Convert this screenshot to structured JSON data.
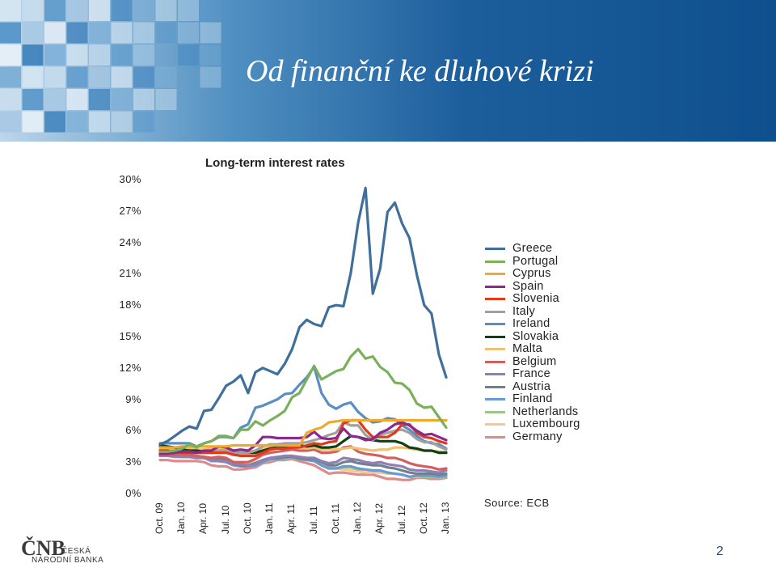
{
  "slide": {
    "title": "Od finanční ke dluhové krizi",
    "page_number": "2"
  },
  "logo": {
    "mark": "ČNB",
    "line1": "ČESKÁ",
    "line2": "NÁRODNÍ BANKA"
  },
  "source": "Source: ECB",
  "colors": {
    "banner_dark": "#0f4f8e",
    "banner_light": "#bcd6ea",
    "accent": "#1b4a8a"
  },
  "chart_data": {
    "type": "line",
    "title": "Long-term interest rates",
    "xlabel": "",
    "ylabel": "",
    "ylim": [
      0,
      30
    ],
    "ytick_labels": [
      "30%",
      "27%",
      "24%",
      "21%",
      "18%",
      "15%",
      "12%",
      "9%",
      "6%",
      "3%",
      "0%"
    ],
    "x_tick_labels": [
      "Oct. 09",
      "Jan. 10",
      "Apr. 10",
      "Jul. 10",
      "Oct. 10",
      "Jan. 11",
      "Apr. 11",
      "Jul. 11",
      "Oct. 11",
      "Jan. 12",
      "Apr. 12",
      "Jul. 12",
      "Oct. 12",
      "Jan. 13"
    ],
    "x": [
      "Oct. 09",
      "Nov. 09",
      "Dec. 09",
      "Jan. 10",
      "Feb. 10",
      "Mar. 10",
      "Apr. 10",
      "May. 10",
      "Jun. 10",
      "Jul. 10",
      "Aug. 10",
      "Sep. 10",
      "Oct. 10",
      "Nov. 10",
      "Dec. 10",
      "Jan. 11",
      "Feb. 11",
      "Mar. 11",
      "Apr. 11",
      "May. 11",
      "Jun. 11",
      "Jul. 11",
      "Aug. 11",
      "Sep. 11",
      "Oct. 11",
      "Nov. 11",
      "Dec. 11",
      "Jan. 12",
      "Feb. 12",
      "Mar. 12",
      "Apr. 12",
      "May. 12",
      "Jun. 12",
      "Jul. 12",
      "Aug. 12",
      "Sep. 12",
      "Oct. 12",
      "Nov. 12",
      "Dec. 12",
      "Jan. 13"
    ],
    "legend_position": "right",
    "series": [
      {
        "name": "Greece",
        "color": "#3f6f9a",
        "values": [
          4.7,
          5.0,
          5.5,
          6.0,
          6.4,
          6.2,
          7.9,
          8.0,
          9.1,
          10.3,
          10.7,
          11.3,
          9.6,
          11.6,
          12.0,
          11.7,
          11.4,
          12.4,
          13.8,
          15.9,
          16.6,
          16.2,
          16.0,
          17.8,
          18.0,
          17.9,
          21.1,
          25.9,
          29.2,
          19.1,
          21.5,
          26.9,
          27.8,
          25.8,
          24.4,
          20.9,
          18.0,
          17.2,
          13.3,
          11.1
        ]
      },
      {
        "name": "Portugal",
        "color": "#7ab05a",
        "values": [
          4.0,
          4.0,
          4.1,
          4.3,
          4.7,
          4.4,
          4.8,
          5.0,
          5.5,
          5.5,
          5.3,
          6.1,
          6.1,
          6.9,
          6.5,
          7.0,
          7.4,
          7.9,
          9.2,
          9.6,
          10.9,
          12.2,
          10.9,
          11.3,
          11.7,
          11.9,
          13.1,
          13.8,
          12.9,
          13.1,
          12.1,
          11.6,
          10.6,
          10.5,
          9.9,
          8.6,
          8.2,
          8.3,
          7.3,
          6.3
        ]
      },
      {
        "name": "Cyprus",
        "color": "#f0a830",
        "values": [
          4.4,
          4.4,
          4.4,
          4.5,
          4.5,
          4.5,
          4.5,
          4.5,
          4.5,
          4.5,
          4.6,
          4.6,
          4.6,
          4.6,
          4.6,
          4.6,
          4.6,
          4.6,
          4.6,
          4.6,
          5.8,
          6.1,
          6.3,
          6.8,
          6.9,
          7.0,
          7.0,
          7.0,
          7.0,
          7.0,
          7.0,
          7.0,
          7.0,
          7.0,
          7.0,
          7.0,
          7.0,
          7.0,
          7.0,
          7.0
        ]
      },
      {
        "name": "Spain",
        "color": "#8a2a8a",
        "values": [
          3.8,
          3.8,
          3.9,
          4.0,
          4.0,
          3.9,
          4.1,
          4.1,
          4.5,
          4.4,
          4.1,
          4.2,
          4.1,
          4.6,
          5.4,
          5.4,
          5.3,
          5.3,
          5.3,
          5.3,
          5.4,
          5.9,
          5.3,
          5.2,
          5.3,
          6.2,
          5.5,
          5.4,
          5.1,
          5.2,
          5.8,
          6.1,
          6.6,
          6.8,
          6.5,
          6.0,
          5.6,
          5.7,
          5.4,
          5.1
        ]
      },
      {
        "name": "Slovenia",
        "color": "#e03a1a",
        "values": [
          4.1,
          4.1,
          4.0,
          3.9,
          3.9,
          3.9,
          3.9,
          3.9,
          3.9,
          3.9,
          3.7,
          3.6,
          3.6,
          3.6,
          3.9,
          4.2,
          4.3,
          4.3,
          4.4,
          4.4,
          4.6,
          4.8,
          4.7,
          4.9,
          5.0,
          6.7,
          7.0,
          7.0,
          6.1,
          5.4,
          5.4,
          5.4,
          5.8,
          6.6,
          6.6,
          5.8,
          5.4,
          5.3,
          5.0,
          4.8
        ]
      },
      {
        "name": "Italy",
        "color": "#a0a0a0",
        "values": [
          4.1,
          4.1,
          4.0,
          4.0,
          4.0,
          3.9,
          4.0,
          4.0,
          4.1,
          4.1,
          3.9,
          3.9,
          3.9,
          4.1,
          4.5,
          4.7,
          4.7,
          4.8,
          4.8,
          4.8,
          4.9,
          5.1,
          5.3,
          5.6,
          5.8,
          6.8,
          6.5,
          6.5,
          5.6,
          5.1,
          5.6,
          5.8,
          6.0,
          6.1,
          5.8,
          5.2,
          4.9,
          4.9,
          4.5,
          4.2
        ]
      },
      {
        "name": "Ireland",
        "color": "#5a8ec0",
        "values": [
          4.8,
          4.8,
          4.8,
          4.8,
          4.8,
          4.5,
          4.8,
          5.0,
          5.4,
          5.4,
          5.3,
          6.3,
          6.6,
          8.2,
          8.4,
          8.7,
          9.0,
          9.5,
          9.6,
          10.4,
          11.1,
          12.1,
          9.6,
          8.5,
          8.1,
          8.5,
          8.7,
          7.8,
          7.2,
          6.8,
          6.9,
          7.2,
          7.1,
          6.5,
          6.1,
          5.5,
          5.0,
          4.8,
          4.7,
          4.3
        ]
      },
      {
        "name": "Slovakia",
        "color": "#143f14",
        "values": [
          4.6,
          4.5,
          4.4,
          4.2,
          4.1,
          4.1,
          4.0,
          4.0,
          4.0,
          4.0,
          3.9,
          3.9,
          3.9,
          3.9,
          4.1,
          4.3,
          4.4,
          4.4,
          4.6,
          4.6,
          4.5,
          4.6,
          4.4,
          4.4,
          4.5,
          5.0,
          5.5,
          5.4,
          5.2,
          5.1,
          5.0,
          5.0,
          5.0,
          4.8,
          4.4,
          4.3,
          4.1,
          4.1,
          3.9,
          3.9
        ]
      },
      {
        "name": "Malta",
        "color": "#f0c070",
        "values": [
          4.3,
          4.3,
          4.3,
          4.3,
          4.3,
          4.2,
          4.2,
          4.3,
          4.3,
          4.3,
          4.1,
          4.0,
          4.0,
          4.1,
          4.2,
          4.4,
          4.4,
          4.4,
          4.5,
          4.4,
          4.3,
          4.4,
          4.2,
          4.2,
          4.2,
          4.3,
          4.4,
          4.3,
          4.2,
          4.1,
          4.2,
          4.2,
          4.4,
          4.4,
          4.3,
          4.2,
          4.1,
          4.1,
          4.0,
          4.0
        ]
      },
      {
        "name": "Belgium",
        "color": "#d06060",
        "values": [
          3.7,
          3.7,
          3.7,
          3.8,
          3.7,
          3.6,
          3.5,
          3.4,
          3.5,
          3.4,
          3.0,
          3.0,
          3.0,
          3.3,
          3.7,
          3.9,
          4.0,
          4.1,
          4.2,
          4.1,
          4.1,
          4.2,
          3.9,
          3.9,
          4.0,
          4.4,
          4.5,
          4.0,
          3.8,
          3.7,
          3.6,
          3.4,
          3.4,
          3.2,
          2.9,
          2.7,
          2.6,
          2.5,
          2.3,
          2.4
        ]
      },
      {
        "name": "France",
        "color": "#9080b0",
        "values": [
          3.6,
          3.6,
          3.6,
          3.5,
          3.5,
          3.4,
          3.4,
          3.2,
          3.1,
          3.1,
          2.8,
          2.8,
          2.7,
          2.8,
          3.2,
          3.4,
          3.5,
          3.6,
          3.6,
          3.5,
          3.4,
          3.4,
          3.1,
          2.9,
          3.0,
          3.4,
          3.3,
          3.2,
          3.0,
          2.9,
          3.0,
          2.8,
          2.7,
          2.6,
          2.3,
          2.2,
          2.2,
          2.1,
          2.0,
          2.2
        ]
      },
      {
        "name": "Austria",
        "color": "#708090",
        "values": [
          3.7,
          3.6,
          3.6,
          3.6,
          3.6,
          3.5,
          3.5,
          3.3,
          3.3,
          3.2,
          2.8,
          2.7,
          2.7,
          2.9,
          3.2,
          3.4,
          3.4,
          3.5,
          3.5,
          3.4,
          3.3,
          3.3,
          3.0,
          2.7,
          2.7,
          3.0,
          3.1,
          2.9,
          2.8,
          2.7,
          2.7,
          2.5,
          2.4,
          2.2,
          2.0,
          1.9,
          1.9,
          1.9,
          1.8,
          1.9
        ]
      },
      {
        "name": "Finland",
        "color": "#6a9ad6",
        "values": [
          3.6,
          3.6,
          3.5,
          3.5,
          3.5,
          3.4,
          3.4,
          3.1,
          3.1,
          3.0,
          2.7,
          2.6,
          2.6,
          2.7,
          3.0,
          3.3,
          3.3,
          3.4,
          3.5,
          3.3,
          3.2,
          3.1,
          2.7,
          2.4,
          2.4,
          2.6,
          2.6,
          2.4,
          2.3,
          2.2,
          2.2,
          2.0,
          1.9,
          1.8,
          1.6,
          1.7,
          1.7,
          1.7,
          1.6,
          1.7
        ]
      },
      {
        "name": "Netherlands",
        "color": "#9ac88a",
        "values": [
          3.6,
          3.6,
          3.5,
          3.5,
          3.5,
          3.4,
          3.4,
          3.1,
          3.1,
          3.0,
          2.7,
          2.6,
          2.6,
          2.7,
          3.0,
          3.2,
          3.3,
          3.3,
          3.4,
          3.3,
          3.2,
          3.1,
          2.7,
          2.4,
          2.4,
          2.5,
          2.5,
          2.3,
          2.3,
          2.2,
          2.2,
          2.0,
          1.9,
          1.8,
          1.6,
          1.7,
          1.6,
          1.6,
          1.5,
          1.6
        ]
      },
      {
        "name": "Luxembourg",
        "color": "#f4c890",
        "values": [
          3.9,
          3.9,
          3.8,
          3.8,
          3.7,
          3.6,
          3.5,
          3.3,
          3.3,
          3.2,
          3.0,
          2.9,
          2.9,
          3.0,
          3.2,
          3.3,
          3.5,
          3.5,
          3.6,
          3.4,
          3.3,
          3.1,
          2.8,
          2.6,
          2.4,
          2.3,
          2.2,
          2.1,
          2.0,
          2.0,
          2.0,
          1.9,
          1.9,
          1.8,
          1.6,
          1.6,
          1.6,
          1.6,
          1.6,
          1.7
        ]
      },
      {
        "name": "Germany",
        "color": "#e08a8a",
        "values": [
          3.2,
          3.2,
          3.1,
          3.1,
          3.1,
          3.1,
          3.0,
          2.7,
          2.6,
          2.6,
          2.3,
          2.3,
          2.4,
          2.5,
          2.9,
          3.0,
          3.2,
          3.2,
          3.3,
          3.1,
          2.9,
          2.7,
          2.3,
          1.9,
          2.0,
          2.0,
          1.9,
          1.8,
          1.8,
          1.8,
          1.6,
          1.4,
          1.4,
          1.3,
          1.3,
          1.5,
          1.5,
          1.4,
          1.4,
          1.5
        ]
      }
    ]
  }
}
